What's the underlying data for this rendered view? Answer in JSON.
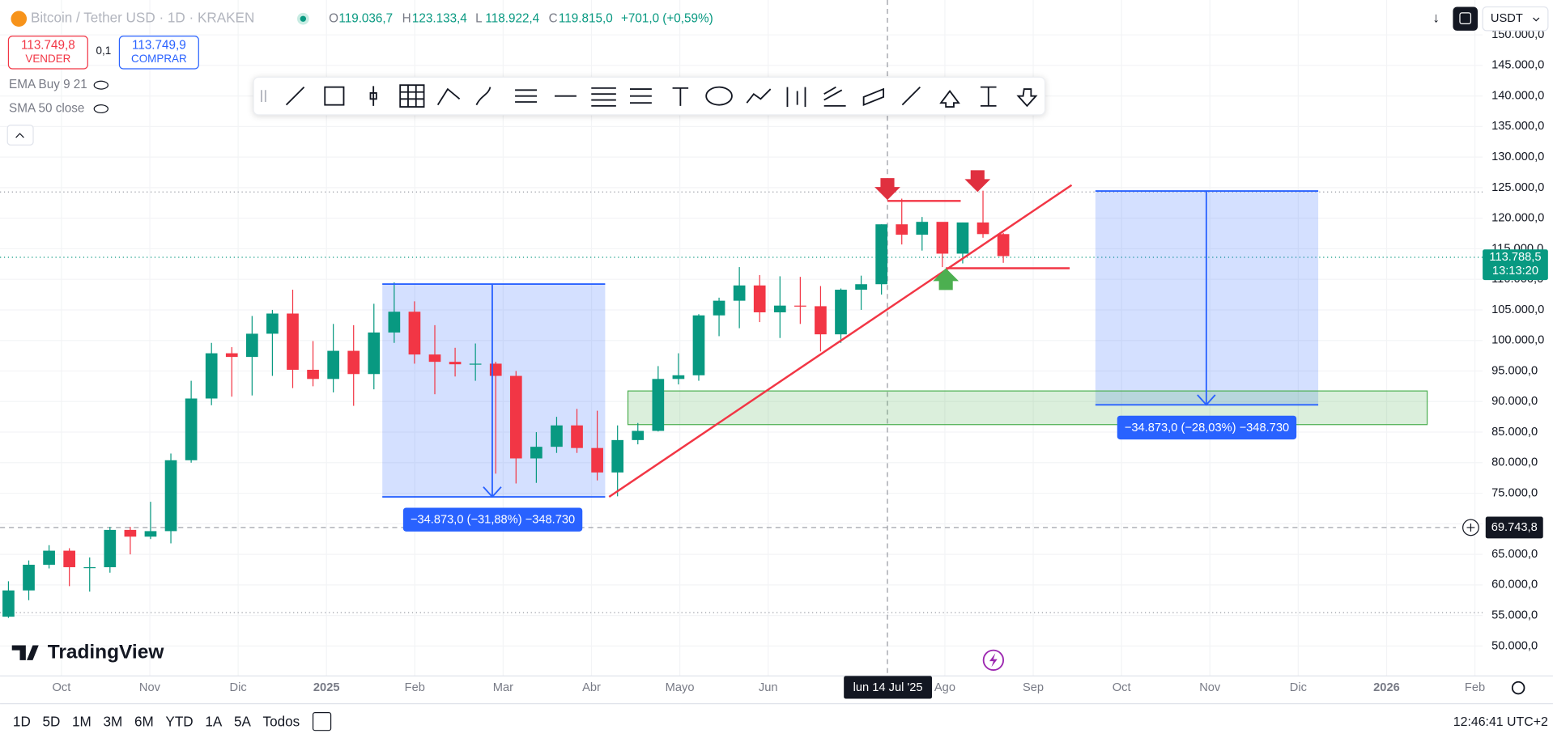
{
  "header": {
    "symbol": "Bitcoin / Tether USD · 1D · KRAKEN",
    "ohlc": [
      {
        "label": "O",
        "value": "119.036,7"
      },
      {
        "label": "H",
        "value": "123.133,4"
      },
      {
        "label": "L",
        "value": "118.922,4"
      },
      {
        "label": "C",
        "value": "119.815,0"
      }
    ],
    "change": "+701,0 (+0,59%)",
    "currency": "USDT"
  },
  "trade": {
    "sell_price": "113.749,8",
    "sell_label": "VENDER",
    "spread": "0,1",
    "buy_price": "113.749,9",
    "buy_label": "COMPRAR"
  },
  "indicators": [
    "EMA Buy 9 21",
    "SMA 50 close"
  ],
  "chart_data": {
    "type": "candlestick",
    "up_color": "#089981",
    "down_color": "#f23645",
    "open": [
      54800,
      59100,
      63300,
      65600,
      62900,
      62900,
      69000,
      67900,
      68800,
      80400,
      90500,
      97900,
      97300,
      101100,
      104400,
      95200,
      93700,
      98300,
      94500,
      101300,
      104700,
      97700,
      96500,
      96100,
      96200,
      94200,
      80700,
      82600,
      86100,
      82400,
      78400,
      83700,
      85200,
      93700,
      94300,
      104100,
      106500,
      109000,
      104600,
      105700,
      105600,
      101000,
      108300,
      109200,
      119000,
      117300,
      119400,
      114200,
      119300,
      117400
    ],
    "high": [
      60600,
      64000,
      66500,
      66000,
      64500,
      69500,
      69500,
      73600,
      81500,
      93400,
      99600,
      98900,
      104000,
      105000,
      108300,
      99900,
      102700,
      102500,
      106000,
      109500,
      106400,
      102500,
      98800,
      99500,
      96500,
      95000,
      85000,
      87500,
      88800,
      88500,
      86100,
      86500,
      95800,
      97900,
      104300,
      107000,
      112000,
      110700,
      110500,
      110400,
      108900,
      108500,
      110600,
      119000,
      123200,
      120200,
      119300,
      119300,
      124500,
      117600
    ],
    "low": [
      54600,
      57500,
      62700,
      59800,
      58900,
      62000,
      65000,
      67500,
      66800,
      80000,
      89400,
      90800,
      91000,
      94200,
      92200,
      92500,
      91500,
      89300,
      92000,
      99600,
      96200,
      91200,
      94100,
      93400,
      78200,
      76600,
      76700,
      81600,
      81600,
      77100,
      74500,
      83000,
      85100,
      92800,
      93400,
      100700,
      102000,
      103000,
      100400,
      102700,
      98200,
      99600,
      105000,
      107500,
      115700,
      114700,
      112000,
      112600,
      116800,
      112700
    ],
    "close": [
      59100,
      63300,
      65600,
      62900,
      62900,
      69000,
      67900,
      68800,
      80400,
      90500,
      97900,
      97300,
      101100,
      104400,
      95200,
      93700,
      98300,
      94500,
      101300,
      104700,
      97700,
      96500,
      96100,
      96200,
      94200,
      80700,
      82600,
      86100,
      82400,
      78400,
      83700,
      85200,
      93700,
      94300,
      104100,
      106500,
      109000,
      104600,
      105700,
      105600,
      101000,
      108300,
      109200,
      119000,
      117300,
      119400,
      114200,
      119300,
      117400,
      113800
    ],
    "ylim": [
      45100,
      155700
    ],
    "yticks": [
      {
        "value": 50000,
        "label": "50.000,0"
      },
      {
        "value": 55000,
        "label": "55.000,0"
      },
      {
        "value": 60000,
        "label": "60.000,0"
      },
      {
        "value": 65000,
        "label": "65.000,0"
      },
      {
        "value": 70000,
        "label": "70.000,0"
      },
      {
        "value": 75000,
        "label": "75.000,0"
      },
      {
        "value": 80000,
        "label": "80.000,0"
      },
      {
        "value": 85000,
        "label": "85.000,0"
      },
      {
        "value": 90000,
        "label": "90.000,0"
      },
      {
        "value": 95000,
        "label": "95.000,0"
      },
      {
        "value": 100000,
        "label": "100.000,0"
      },
      {
        "value": 105000,
        "label": "105.000,0"
      },
      {
        "value": 110000,
        "label": "110.000,0"
      },
      {
        "value": 115000,
        "label": "115.000,0"
      },
      {
        "value": 120000,
        "label": "120.000,0"
      },
      {
        "value": 125000,
        "label": "125.000,0"
      },
      {
        "value": 130000,
        "label": "130.000,0"
      },
      {
        "value": 135000,
        "label": "135.000,0"
      },
      {
        "value": 140000,
        "label": "140.000,0"
      },
      {
        "value": 145000,
        "label": "145.000,0"
      },
      {
        "value": 150000,
        "label": "150.000,0"
      }
    ],
    "xticks": [
      {
        "value": "2024-10",
        "label": "Oct"
      },
      {
        "value": "2024-11",
        "label": "Nov"
      },
      {
        "value": "2024-12",
        "label": "Dic"
      },
      {
        "value": "2025-01",
        "label": "2025"
      },
      {
        "value": "2025-02",
        "label": "Feb"
      },
      {
        "value": "2025-03",
        "label": "Mar"
      },
      {
        "value": "2025-04",
        "label": "Abr"
      },
      {
        "value": "2025-05",
        "label": "Mayo"
      },
      {
        "value": "2025-06",
        "label": "Jun"
      },
      {
        "value": "2025-08",
        "label": "Ago"
      },
      {
        "value": "2025-09",
        "label": "Sep"
      },
      {
        "value": "2025-10",
        "label": "Oct"
      },
      {
        "value": "2025-11",
        "label": "Nov"
      },
      {
        "value": "2025-12",
        "label": "Dic"
      },
      {
        "value": "2026-01",
        "label": "2026"
      },
      {
        "value": "2026-02",
        "label": "Feb"
      }
    ]
  },
  "price_labels": {
    "last": "113.788,5",
    "countdown": "13:13:20",
    "crosshair": "69.743,8",
    "crosshair_date": "lun 14 Jul '25"
  },
  "measurements": [
    "−34.873,0 (−31,88%) −348.730",
    "−34.873,0 (−28,03%) −348.730"
  ],
  "logo": "TradingView",
  "intervals": [
    "1D",
    "5D",
    "1M",
    "3M",
    "6M",
    "YTD",
    "1A",
    "5A",
    "Todos"
  ],
  "clock": "12:46:41 UTC+2"
}
